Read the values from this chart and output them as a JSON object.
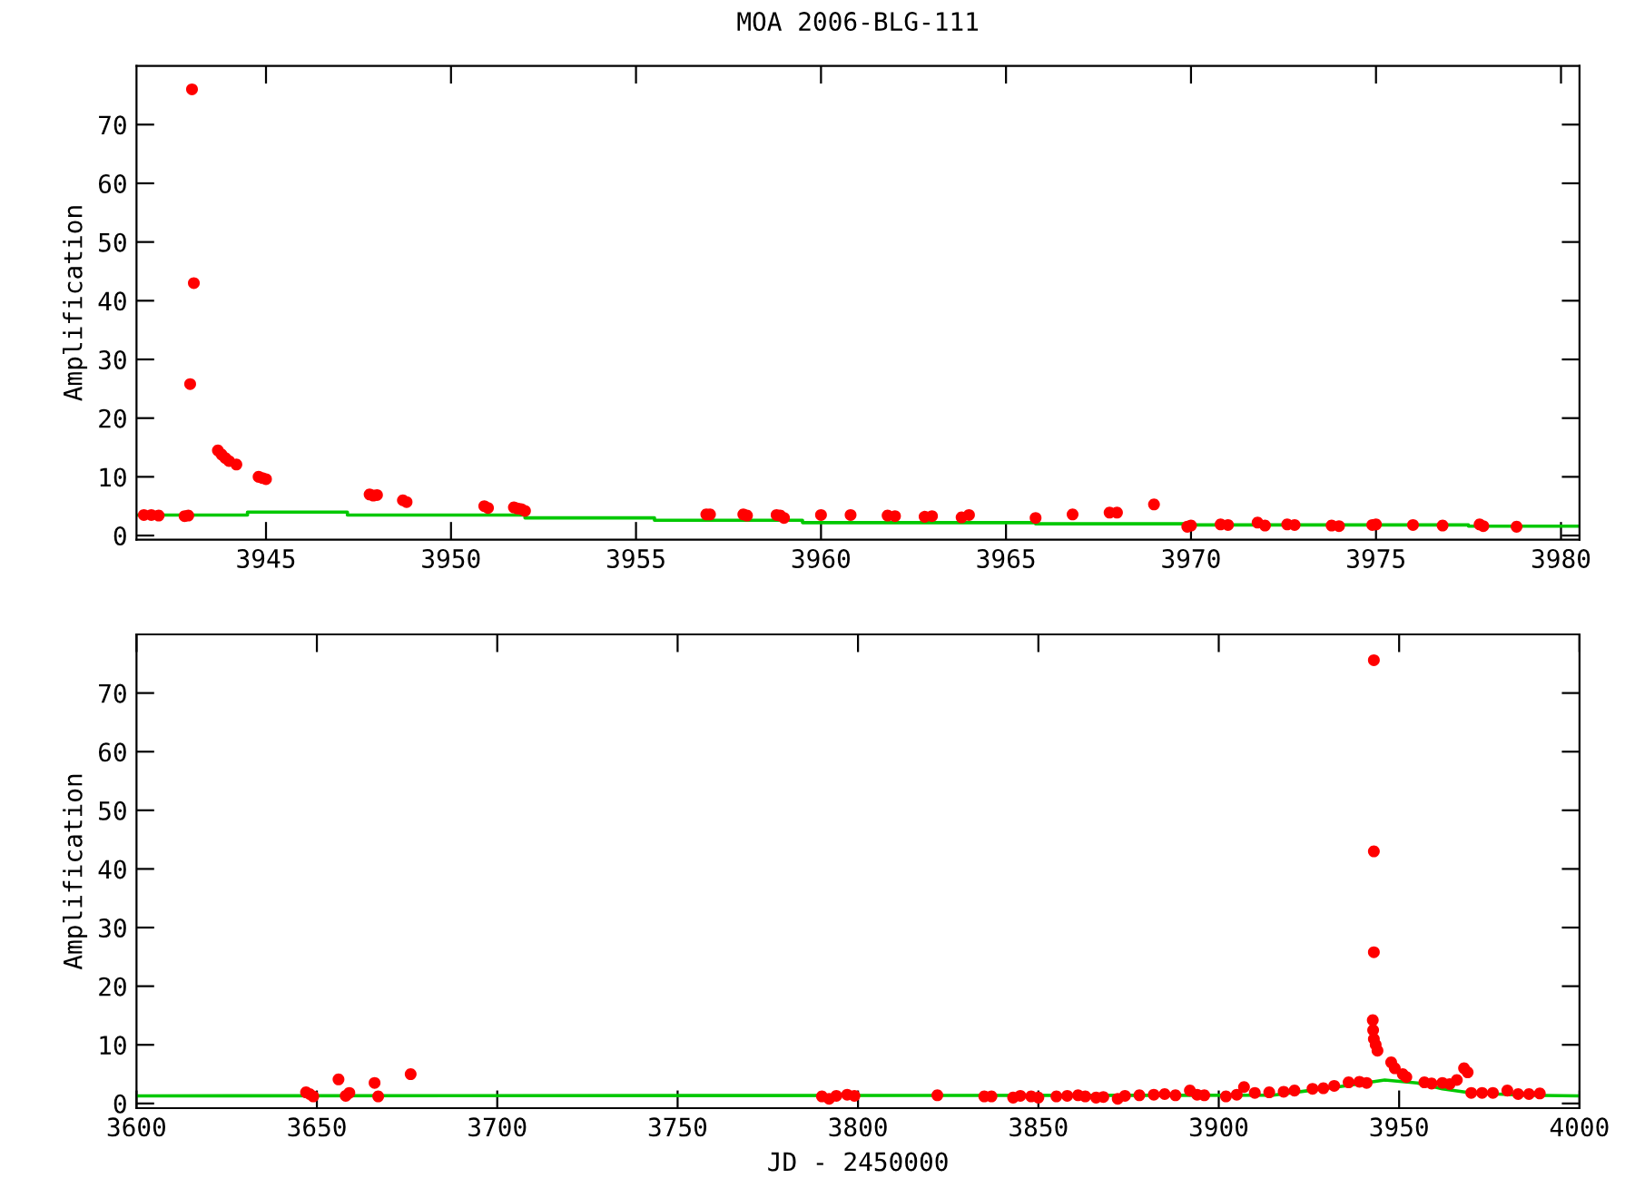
{
  "chart_data": [
    {
      "type": "scatter",
      "title": "MOA 2006-BLG-111",
      "ylabel": "Amplification",
      "grid": false,
      "xlim": [
        3941.5,
        3980.5
      ],
      "xticks": [
        3945,
        3950,
        3955,
        3960,
        3965,
        3970,
        3975,
        3980
      ],
      "ylim": [
        -0.7,
        80
      ],
      "yticks": [
        0,
        10,
        20,
        30,
        40,
        50,
        60,
        70
      ],
      "series": [
        {
          "marker": "circle",
          "color": "#ff0000",
          "x": [
            3941.7,
            3941.9,
            3942.1,
            3942.8,
            3942.9,
            3943.0,
            3943.05,
            3942.95,
            3943.7,
            3943.8,
            3943.9,
            3944.0,
            3944.2,
            3944.8,
            3944.9,
            3945.0,
            3947.8,
            3947.9,
            3948.0,
            3948.7,
            3948.8,
            3950.9,
            3951.0,
            3951.7,
            3951.8,
            3951.9,
            3952.0,
            3956.9,
            3957.0,
            3957.9,
            3958.0,
            3958.8,
            3958.9,
            3959.0,
            3960.0,
            3960.8,
            3961.8,
            3962.0,
            3962.8,
            3963.0,
            3963.8,
            3964.0,
            3965.8,
            3966.8,
            3967.8,
            3968.0,
            3969.0,
            3969.9,
            3970.0,
            3970.8,
            3971.0,
            3971.8,
            3972.0,
            3972.6,
            3972.8,
            3973.8,
            3974.0,
            3974.9,
            3975.0,
            3976.0,
            3976.8,
            3977.8,
            3977.9,
            3978.8
          ],
          "values": [
            3.5,
            3.5,
            3.4,
            3.3,
            3.4,
            76,
            43,
            25.8,
            14.5,
            13.8,
            13.2,
            12.7,
            12.1,
            10,
            9.8,
            9.6,
            7.0,
            6.8,
            6.9,
            6.0,
            5.7,
            5.0,
            4.7,
            4.8,
            4.6,
            4.5,
            4.2,
            3.6,
            3.6,
            3.6,
            3.4,
            3.5,
            3.4,
            3.0,
            3.5,
            3.5,
            3.4,
            3.3,
            3.2,
            3.3,
            3.1,
            3.5,
            3.0,
            3.6,
            3.9,
            3.9,
            5.3,
            1.5,
            1.7,
            1.9,
            1.8,
            2.2,
            1.7,
            1.9,
            1.8,
            1.7,
            1.6,
            1.8,
            1.9,
            1.8,
            1.7,
            1.9,
            1.6,
            1.5
          ]
        },
        {
          "type": "step",
          "color": "#00c800",
          "x": [
            3941.5,
            3944.5,
            3947.2,
            3952.0,
            3955.5,
            3959.5,
            3965.8,
            3969.8,
            3977.5,
            3980.5
          ],
          "values": [
            3.5,
            4.0,
            3.5,
            3.0,
            2.6,
            2.2,
            2.0,
            1.8,
            1.6,
            1.6
          ]
        }
      ]
    },
    {
      "type": "scatter",
      "xlabel": "JD - 2450000",
      "ylabel": "Amplification",
      "grid": false,
      "xlim": [
        3600,
        4000
      ],
      "xticks": [
        3600,
        3650,
        3700,
        3750,
        3800,
        3850,
        3900,
        3950,
        4000
      ],
      "ylim": [
        -0.8,
        80
      ],
      "yticks": [
        0,
        10,
        20,
        30,
        40,
        50,
        60,
        70
      ],
      "series": [
        {
          "marker": "circle",
          "color": "#ff0000",
          "x": [
            3647,
            3648,
            3649,
            3656,
            3658,
            3659,
            3666,
            3667,
            3676,
            3790,
            3792,
            3794,
            3797,
            3799,
            3822,
            3835,
            3837,
            3843,
            3845,
            3848,
            3850,
            3855,
            3858,
            3861,
            3863,
            3866,
            3868,
            3872,
            3874,
            3878,
            3882,
            3885,
            3888,
            3892,
            3894,
            3896,
            3902,
            3905,
            3907,
            3910,
            3914,
            3918,
            3921,
            3926,
            3929,
            3932,
            3936,
            3939,
            3941,
            3942.7,
            3942.8,
            3943,
            3943.5,
            3944,
            3943,
            3943,
            3943,
            3947.8,
            3948.8,
            3951,
            3952,
            3957,
            3959,
            3962,
            3964,
            3966,
            3968,
            3969,
            3970,
            3973,
            3976,
            3980,
            3983,
            3986,
            3989
          ],
          "values": [
            1.9,
            1.6,
            1.2,
            4.1,
            1.3,
            1.8,
            3.5,
            1.2,
            5.0,
            1.2,
            0.8,
            1.3,
            1.5,
            1.3,
            1.4,
            1.2,
            1.2,
            1.0,
            1.3,
            1.2,
            1.0,
            1.2,
            1.3,
            1.4,
            1.2,
            1.0,
            1.1,
            0.8,
            1.3,
            1.4,
            1.5,
            1.6,
            1.4,
            2.2,
            1.5,
            1.4,
            1.2,
            1.5,
            2.8,
            1.8,
            1.9,
            2.0,
            2.2,
            2.5,
            2.6,
            3.0,
            3.6,
            3.7,
            3.5,
            14.2,
            12.5,
            11.0,
            10,
            9,
            75.6,
            43,
            25.8,
            7.0,
            6.0,
            5.0,
            4.5,
            3.6,
            3.4,
            3.5,
            3.3,
            4.0,
            6.0,
            5.3,
            1.8,
            1.8,
            1.8,
            2.2,
            1.6,
            1.6,
            1.7
          ]
        },
        {
          "type": "line",
          "color": "#00c800",
          "x": [
            3600,
            3915,
            3925,
            3935,
            3946,
            3955,
            3962,
            3970,
            3985,
            4000
          ],
          "values": [
            1.3,
            1.4,
            2.2,
            3.0,
            4.0,
            3.5,
            2.5,
            1.8,
            1.4,
            1.3
          ]
        }
      ]
    }
  ]
}
